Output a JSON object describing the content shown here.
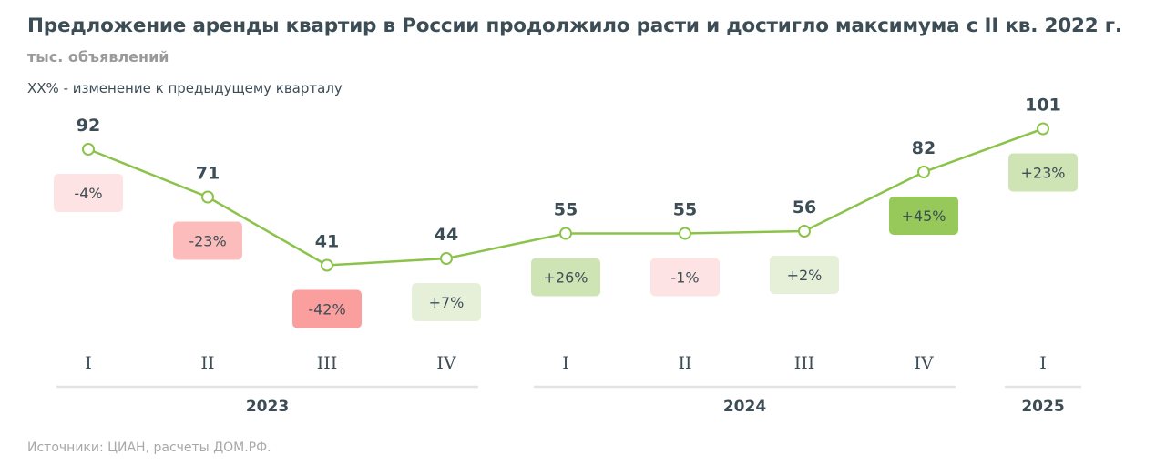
{
  "header": {
    "title": "Предложение аренды квартир в России продолжило расти и достигло максимума с II кв. 2022 г.",
    "subtitle": "тыс. объявлений",
    "note": "XX% - изменение к предыдущему кварталу"
  },
  "footer": {
    "source": "Источники: ЦИАН, расчеты ДОМ.РФ."
  },
  "colors": {
    "line": "#8bc34a",
    "text": "#3d4d55",
    "axis_line": "#e3e3e3",
    "neg_light": "#fde3e3",
    "neg_mid": "#fdbcbc",
    "neg_strong": "#fb9e9e",
    "pos_light": "#e6f0d9",
    "pos_mid": "#cfe4b5",
    "pos_strong": "#96c95a"
  },
  "chart_data": {
    "type": "line",
    "title": "Предложение аренды квартир в России продолжило расти и достигло максимума с II кв. 2022 г.",
    "ylabel": "тыс. объявлений",
    "xlabel": "",
    "categories": [
      "I",
      "II",
      "III",
      "IV",
      "I",
      "II",
      "III",
      "IV",
      "I"
    ],
    "years": [
      {
        "label": "2023",
        "start": 0,
        "end": 3
      },
      {
        "label": "2024",
        "start": 4,
        "end": 7
      },
      {
        "label": "2025",
        "start": 8,
        "end": 8
      }
    ],
    "values": [
      92,
      71,
      41,
      44,
      55,
      55,
      56,
      82,
      101
    ],
    "value_labels": [
      "92",
      "71",
      "41",
      "44",
      "55",
      "55",
      "56",
      "82",
      "101"
    ],
    "changes": [
      "-4%",
      "-23%",
      "-42%",
      "+7%",
      "+26%",
      "-1%",
      "+2%",
      "+45%",
      "+23%"
    ],
    "change_values": [
      -4,
      -23,
      -42,
      7,
      26,
      -1,
      2,
      45,
      23
    ],
    "ylim": [
      30,
      110
    ],
    "grid": false,
    "legend": "none"
  }
}
